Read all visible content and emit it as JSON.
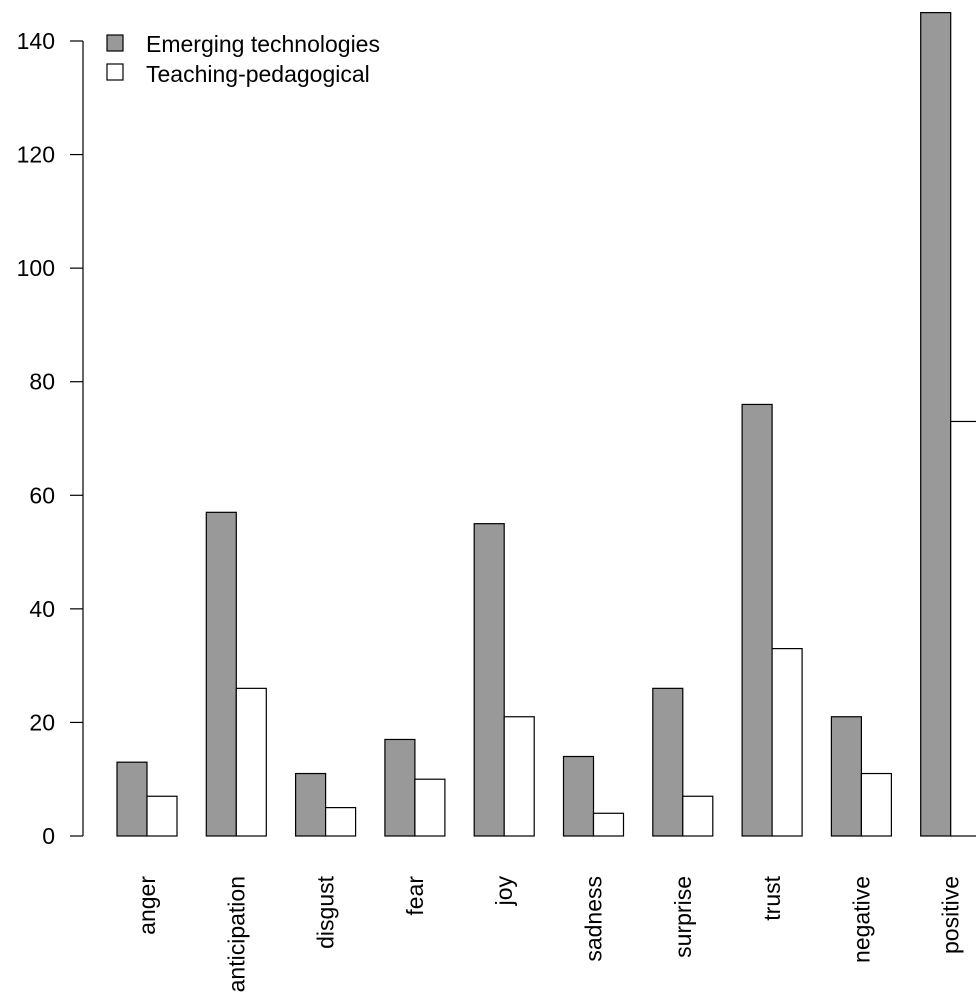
{
  "chart_data": {
    "type": "bar",
    "title": "",
    "xlabel": "",
    "ylabel": "",
    "categories": [
      "anger",
      "anticipation",
      "disgust",
      "fear",
      "joy",
      "sadness",
      "surprise",
      "trust",
      "negative",
      "positive"
    ],
    "series": [
      {
        "name": "Emerging technologies",
        "color": "#999999",
        "values": [
          13,
          57,
          11,
          17,
          55,
          14,
          26,
          76,
          21,
          145
        ]
      },
      {
        "name": "Teaching-pedagogical",
        "color": "#ffffff",
        "values": [
          7,
          26,
          5,
          10,
          21,
          4,
          7,
          33,
          11,
          73
        ]
      }
    ],
    "yticks": [
      0,
      20,
      40,
      60,
      80,
      100,
      120,
      140
    ],
    "ylim": [
      0,
      145
    ],
    "grid": false,
    "legend_position": "top-left"
  }
}
